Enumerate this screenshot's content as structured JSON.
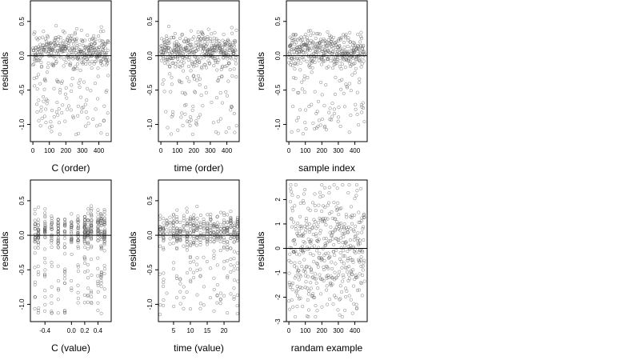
{
  "chart_data": [
    {
      "type": "scatter",
      "xlabel": "C (order)",
      "ylabel": "residuals",
      "xlim": [
        -15,
        475
      ],
      "ylim": [
        -1.25,
        0.8
      ],
      "xticks": [
        0,
        100,
        200,
        300,
        400
      ],
      "xtick_labels": [
        "0",
        "100",
        "200",
        "300",
        "400"
      ],
      "yticks": [
        -1.0,
        -0.5,
        0.0,
        0.5
      ],
      "ytick_labels": [
        "-1.0",
        "-0.5",
        "0.0",
        "0.5"
      ],
      "hline": 0,
      "x_kind": "index",
      "n_points": 460,
      "y_range": [
        -1.15,
        0.7
      ],
      "seed": 11,
      "point_color": "#555555"
    },
    {
      "type": "scatter",
      "xlabel": "time (order)",
      "ylabel": "residuals",
      "xlim": [
        -15,
        475
      ],
      "ylim": [
        -1.25,
        0.8
      ],
      "xticks": [
        0,
        100,
        200,
        300,
        400
      ],
      "xtick_labels": [
        "0",
        "100",
        "200",
        "300",
        "400"
      ],
      "yticks": [
        -1.0,
        -0.5,
        0.0,
        0.5
      ],
      "ytick_labels": [
        "-1.0",
        "-0.5",
        "0.0",
        "0.5"
      ],
      "hline": 0,
      "x_kind": "index",
      "n_points": 460,
      "y_range": [
        -1.15,
        0.7
      ],
      "seed": 23,
      "point_color": "#555555"
    },
    {
      "type": "scatter",
      "xlabel": "sample index",
      "ylabel": "residuals",
      "xlim": [
        -15,
        475
      ],
      "ylim": [
        -1.25,
        0.8
      ],
      "xticks": [
        0,
        100,
        200,
        300,
        400
      ],
      "xtick_labels": [
        "0",
        "100",
        "200",
        "300",
        "400"
      ],
      "yticks": [
        -1.0,
        -0.5,
        0.0,
        0.5
      ],
      "ytick_labels": [
        "-1.0",
        "-0.5",
        "0.0",
        "0.5"
      ],
      "hline": 0,
      "x_kind": "index",
      "n_points": 460,
      "y_range": [
        -1.15,
        0.7
      ],
      "seed": 37,
      "point_color": "#555555"
    },
    {
      "type": "scatter",
      "xlabel": "C (value)",
      "ylabel": "residuals",
      "xlim": [
        -0.62,
        0.6
      ],
      "ylim": [
        -1.25,
        0.8
      ],
      "xticks": [
        -0.4,
        0.0,
        0.2,
        0.4
      ],
      "xtick_labels": [
        "-0.4",
        "0.0",
        "0.2",
        "0.4"
      ],
      "yticks": [
        -1.0,
        -0.5,
        0.0,
        0.5
      ],
      "ytick_labels": [
        "-1.0",
        "-0.5",
        "0.0",
        "0.5"
      ],
      "hline": 0,
      "x_kind": "discrete",
      "x_levels": [
        -0.55,
        -0.5,
        -0.4,
        -0.3,
        -0.2,
        -0.1,
        0.0,
        0.1,
        0.2,
        0.25,
        0.3,
        0.4,
        0.45,
        0.5
      ],
      "n_points": 460,
      "y_range": [
        -1.15,
        0.7
      ],
      "seed": 41,
      "point_color": "#555555"
    },
    {
      "type": "scatter",
      "xlabel": "time (value)",
      "ylabel": "residuals",
      "xlim": [
        0.5,
        24.5
      ],
      "ylim": [
        -1.25,
        0.8
      ],
      "xticks": [
        5,
        10,
        15,
        20
      ],
      "xtick_labels": [
        "5",
        "10",
        "15",
        "20"
      ],
      "yticks": [
        -1.0,
        -0.5,
        0.0,
        0.5
      ],
      "ytick_labels": [
        "-1.0",
        "-0.5",
        "0.0",
        "0.5"
      ],
      "hline": 0,
      "x_kind": "discrete",
      "x_levels": [
        1,
        2,
        3,
        4,
        5,
        6,
        7,
        8,
        9,
        10,
        11,
        12,
        13,
        14,
        15,
        16,
        17,
        18,
        19,
        20,
        21,
        22,
        23,
        24
      ],
      "n_points": 460,
      "y_range": [
        -1.15,
        0.7
      ],
      "seed": 53,
      "point_color": "#555555"
    },
    {
      "type": "scatter",
      "xlabel": "randam example",
      "ylabel": "residuals",
      "xlim": [
        -15,
        475
      ],
      "ylim": [
        -3.0,
        2.8
      ],
      "xticks": [
        0,
        100,
        200,
        300,
        400
      ],
      "xtick_labels": [
        "0",
        "100",
        "200",
        "300",
        "400"
      ],
      "yticks": [
        -3,
        -2,
        -1,
        0,
        1,
        2
      ],
      "ytick_labels": [
        "-3",
        "-2",
        "-1",
        "0",
        "1",
        "2"
      ],
      "hline": 0,
      "x_kind": "index",
      "n_points": 460,
      "y_range": [
        -2.8,
        2.6
      ],
      "seed": 67,
      "point_color": "#555555"
    }
  ]
}
